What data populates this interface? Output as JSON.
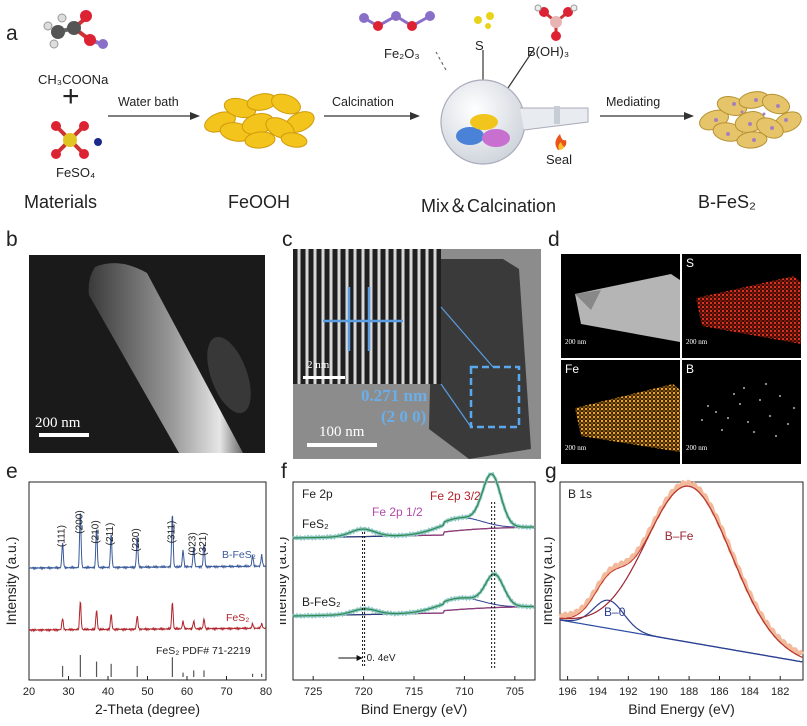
{
  "panel_labels": {
    "a": "a",
    "b": "b",
    "c": "c",
    "d": "d",
    "e": "e",
    "f": "f",
    "g": "g"
  },
  "schematic": {
    "precursor1": "CH₃COONa",
    "plus": "+",
    "precursor2": "FeSO₄",
    "materials": "Materials",
    "step1": "Water bath",
    "intermediate": "FeOOH",
    "step2": "Calcination",
    "fe2o3": "Fe₂O₃",
    "s": "S",
    "boh3": "B(OH)₃",
    "seal": "Seal",
    "mix": "Mix＆Calcination",
    "step3": "Mediating",
    "product": "B-FeS₂",
    "colors": {
      "flake": "#f0c419",
      "flake_edge": "#c99a0a",
      "b_fes2": "#e3c56a",
      "arrow": "#333333"
    }
  },
  "micrographs": {
    "b_scale": "200 nm",
    "c_scale": "100 nm",
    "c_inset_scale": "2 nm",
    "c_dspacing": "0.271 nm",
    "c_plane": "(2 0 0)",
    "d_maps": [
      {
        "label": "",
        "scale": "200 nm",
        "color": "#b5b5b5"
      },
      {
        "label": "S",
        "scale": "200 nm",
        "color": "#d8321e"
      },
      {
        "label": "Fe",
        "scale": "200 nm",
        "color": "#e8a21e"
      },
      {
        "label": "B",
        "scale": "200 nm",
        "color": "#d6f0f0"
      }
    ]
  },
  "chart_data": [
    {
      "type": "line",
      "panel": "e",
      "title": "",
      "xlabel": "2-Theta (degree)",
      "ylabel": "Intensity (a.u.)",
      "xlim": [
        20,
        80
      ],
      "xticks": [
        "20",
        "30",
        "40",
        "50",
        "60",
        "70",
        "80"
      ],
      "series": [
        {
          "name": "B-FeS₂",
          "color": "#3a5a9a",
          "peaks": [
            28.5,
            33.0,
            37.1,
            40.8,
            47.4,
            56.3,
            59.0,
            61.7,
            64.3,
            76.6,
            78.9
          ],
          "heights": [
            0.45,
            1.0,
            0.7,
            0.6,
            0.55,
            0.95,
            0.3,
            0.35,
            0.4,
            0.2,
            0.2
          ]
        },
        {
          "name": "FeS₂",
          "color": "#b0242b",
          "peaks": [
            28.5,
            33.0,
            37.1,
            40.8,
            47.4,
            56.3,
            59.0,
            61.7,
            64.3,
            76.6,
            78.9
          ],
          "heights": [
            0.3,
            0.75,
            0.5,
            0.4,
            0.35,
            0.7,
            0.2,
            0.2,
            0.25,
            0.12,
            0.12
          ]
        }
      ],
      "reference": {
        "name": "FeS₂ PDF# 71-2219",
        "peaks": [
          28.5,
          33.0,
          37.1,
          40.8,
          47.4,
          56.3,
          59.0,
          61.7,
          64.3,
          76.6,
          78.9
        ],
        "heights": [
          0.5,
          1.0,
          0.7,
          0.6,
          0.5,
          0.9,
          0.2,
          0.3,
          0.3,
          0.15,
          0.15
        ]
      },
      "annotations": [
        "(111)",
        "(200)",
        "(210)",
        "(211)",
        "(220)",
        "(311)",
        "(023)",
        "(321)"
      ],
      "annotation_x": [
        28.5,
        33.0,
        37.1,
        40.8,
        47.4,
        56.3,
        61.7,
        64.3
      ]
    },
    {
      "type": "line",
      "panel": "f",
      "title": "Fe 2p",
      "xlabel": "Bind Energy (eV)",
      "ylabel": "Intensity (a.u.)",
      "xlim": [
        727,
        703
      ],
      "xticks": [
        "725",
        "720",
        "715",
        "710",
        "705"
      ],
      "labels": {
        "fe2p12": "Fe 2p 1/2",
        "fe2p32": "Fe 2p 3/2",
        "shift": "0. 4eV"
      },
      "series": [
        {
          "name": "FeS₂",
          "peaks": [
            707.3,
            710.5,
            720.1
          ],
          "widths": [
            0.9,
            2.2,
            1.2
          ],
          "heights": [
            1.0,
            0.25,
            0.15
          ]
        },
        {
          "name": "B-FeS₂",
          "peaks": [
            707.0,
            710.5,
            719.9
          ],
          "widths": [
            0.9,
            2.2,
            1.2
          ],
          "heights": [
            0.8,
            0.3,
            0.15
          ]
        }
      ]
    },
    {
      "type": "line",
      "panel": "g",
      "title": "B 1s",
      "xlabel": "Bind Energy (eV)",
      "ylabel": "Intensity (a.u.)",
      "xlim": [
        196.5,
        180.5
      ],
      "xticks": [
        "196",
        "194",
        "192",
        "190",
        "188",
        "186",
        "184",
        "182"
      ],
      "series": [
        {
          "name": "B–Fe",
          "center": 188.0,
          "width": 2.8,
          "height": 1.0
        },
        {
          "name": "B–0",
          "center": 193.3,
          "width": 1.0,
          "height": 0.18
        }
      ]
    }
  ]
}
